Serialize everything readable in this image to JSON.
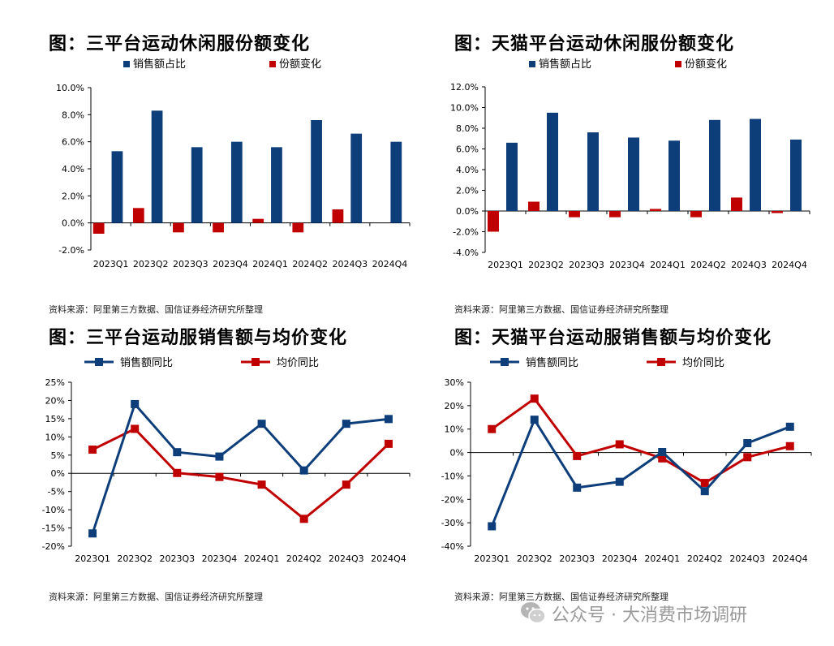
{
  "panels": [
    {
      "title": "图：三平台运动休闲服份额变化",
      "source": "资料来源：阿里第三方数据、国信证券经济研究所整理",
      "chart": {
        "type": "bar",
        "categories": [
          "2023Q1",
          "2023Q2",
          "2023Q3",
          "2023Q4",
          "2024Q1",
          "2024Q2",
          "2024Q3",
          "2024Q4"
        ],
        "series": [
          {
            "name": "销售额占比",
            "color": "#0d3e7a",
            "values": [
              5.3,
              8.3,
              5.6,
              6.0,
              5.6,
              7.6,
              6.6,
              6.0
            ]
          },
          {
            "name": "份额变化",
            "color": "#c00000",
            "values": [
              -0.8,
              1.1,
              -0.7,
              -0.7,
              0.3,
              -0.7,
              1.0,
              0.0
            ]
          }
        ],
        "ylim": [
          -2,
          10
        ],
        "yticks": [
          -2,
          0,
          2,
          4,
          6,
          8,
          10
        ],
        "ytick_labels": [
          "-2.0%",
          "0.0%",
          "2.0%",
          "4.0%",
          "6.0%",
          "8.0%",
          "10.0%"
        ]
      }
    },
    {
      "title": "图：天猫平台运动休闲服份额变化",
      "source": "资料来源：阿里第三方数据、国信证券经济研究所整理",
      "chart": {
        "type": "bar",
        "categories": [
          "2023Q1",
          "2023Q2",
          "2023Q3",
          "2023Q4",
          "2024Q1",
          "2024Q2",
          "2024Q3",
          "2024Q4"
        ],
        "series": [
          {
            "name": "销售额占比",
            "color": "#0d3e7a",
            "values": [
              6.6,
              9.5,
              7.6,
              7.1,
              6.8,
              8.8,
              8.9,
              6.9
            ]
          },
          {
            "name": "份额变化",
            "color": "#c00000",
            "values": [
              -2.0,
              0.9,
              -0.6,
              -0.6,
              0.2,
              -0.6,
              1.3,
              -0.2
            ]
          }
        ],
        "ylim": [
          -4,
          12
        ],
        "yticks": [
          -4,
          -2,
          0,
          2,
          4,
          6,
          8,
          10,
          12
        ],
        "ytick_labels": [
          "-4.0%",
          "-2.0%",
          "0.0%",
          "2.0%",
          "4.0%",
          "6.0%",
          "8.0%",
          "10.0%",
          "12.0%"
        ]
      }
    },
    {
      "title": "图：三平台运动服销售额与均价变化",
      "source": "资料来源：阿里第三方数据、国信证券经济研究所整理",
      "chart": {
        "type": "line",
        "categories": [
          "2023Q1",
          "2023Q2",
          "2023Q3",
          "2023Q4",
          "2024Q1",
          "2024Q2",
          "2024Q3",
          "2024Q4"
        ],
        "series": [
          {
            "name": "销售额同比",
            "color": "#0d3e7a",
            "values": [
              -16.5,
              19.0,
              5.8,
              4.6,
              13.6,
              0.8,
              13.6,
              14.9
            ]
          },
          {
            "name": "均价同比",
            "color": "#c00000",
            "values": [
              6.5,
              12.2,
              0.1,
              -1.0,
              -3.1,
              -12.5,
              -3.1,
              8.1
            ]
          }
        ],
        "ylim": [
          -20,
          25
        ],
        "yticks": [
          -20,
          -15,
          -10,
          -5,
          0,
          5,
          10,
          15,
          20,
          25
        ],
        "ytick_labels": [
          "-20%",
          "-15%",
          "-10%",
          "-5%",
          "0%",
          "5%",
          "10%",
          "15%",
          "20%",
          "25%"
        ]
      }
    },
    {
      "title": "图：天猫平台运动服销售额与均价变化",
      "source": "资料来源：阿里第三方数据、国信证券经济研究所整理",
      "chart": {
        "type": "line",
        "categories": [
          "2023Q1",
          "2023Q2",
          "2023Q3",
          "2023Q4",
          "2024Q1",
          "2024Q2",
          "2024Q3",
          "2024Q4"
        ],
        "series": [
          {
            "name": "销售额同比",
            "color": "#0d3e7a",
            "values": [
              -31.5,
              14.0,
              -15.0,
              -12.5,
              0.2,
              -16.5,
              4.0,
              11.0
            ]
          },
          {
            "name": "均价同比",
            "color": "#c00000",
            "values": [
              10.0,
              23.0,
              -1.5,
              3.5,
              -2.5,
              -13.0,
              -2.0,
              2.7
            ]
          }
        ],
        "ylim": [
          -40,
          30
        ],
        "yticks": [
          -40,
          -30,
          -20,
          -10,
          0,
          10,
          20,
          30
        ],
        "ytick_labels": [
          "-40%",
          "-30%",
          "-20%",
          "-10%",
          "0%",
          "10%",
          "20%",
          "30%"
        ]
      }
    }
  ],
  "watermark": "公众号 · 大消费市场调研"
}
